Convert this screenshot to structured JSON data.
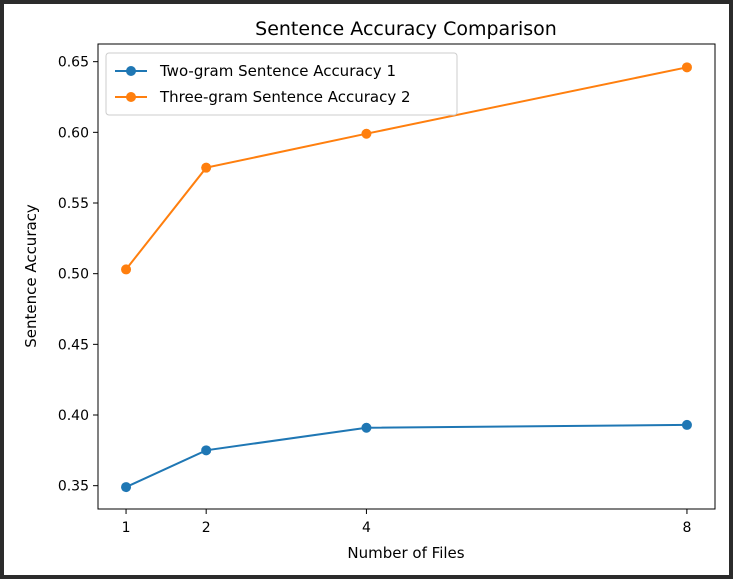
{
  "chart_data": {
    "type": "line",
    "title": "Sentence Accuracy Comparison",
    "xlabel": "Number of Files",
    "ylabel": "Sentence Accuracy",
    "x": [
      1,
      2,
      4,
      8
    ],
    "x_ticks": [
      "1",
      "2",
      "4",
      "8"
    ],
    "y_ticks": [
      "0.35",
      "0.40",
      "0.45",
      "0.50",
      "0.55",
      "0.60",
      "0.65"
    ],
    "y_tick_values": [
      0.35,
      0.4,
      0.45,
      0.5,
      0.55,
      0.6,
      0.65
    ],
    "xlim": [
      0.65,
      8.35
    ],
    "ylim": [
      0.3335,
      0.6625
    ],
    "grid": false,
    "legend_position": "upper-left",
    "series": [
      {
        "name": "Two-gram Sentence Accuracy 1",
        "values": [
          0.349,
          0.375,
          0.391,
          0.393
        ],
        "color": "#1f77b4",
        "marker": "circle"
      },
      {
        "name": "Three-gram Sentence Accuracy 2",
        "values": [
          0.503,
          0.575,
          0.599,
          0.646
        ],
        "color": "#ff7f0e",
        "marker": "circle"
      }
    ]
  }
}
